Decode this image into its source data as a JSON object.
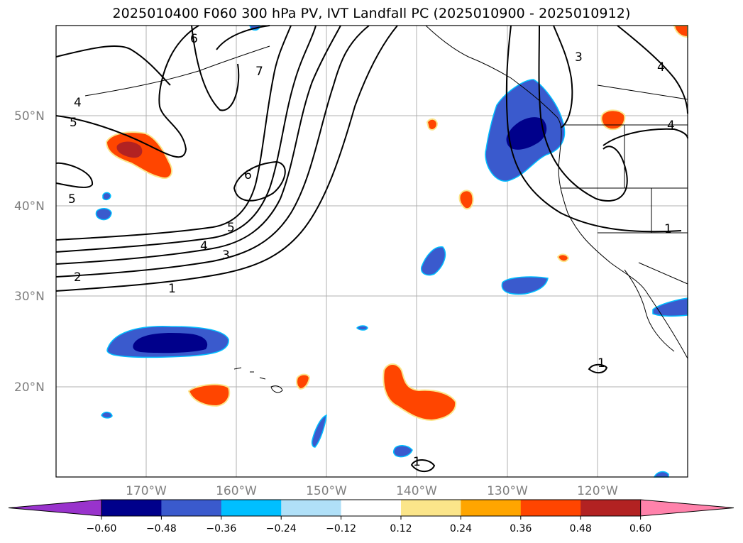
{
  "title": "2025010400 F060 300 hPa PV, IVT Landfall PC (2025010900 - 2025010912)",
  "map": {
    "lon_range": [
      -180,
      -110
    ],
    "lat_range": [
      10,
      60
    ],
    "lat_labels": [
      "50°N",
      "40°N",
      "30°N",
      "20°N"
    ],
    "lon_labels": [
      "170°W",
      "160°W",
      "150°W",
      "140°W",
      "130°W",
      "120°W"
    ],
    "contour_labels": [
      "6",
      "7",
      "4",
      "5",
      "6",
      "5",
      "4",
      "3",
      "2",
      "1",
      "3",
      "4",
      "4",
      "1",
      "1",
      "1",
      "5"
    ]
  },
  "colorbar": {
    "ticks": [
      "−0.60",
      "−0.48",
      "−0.36",
      "−0.24",
      "−0.12",
      "0.12",
      "0.24",
      "0.36",
      "0.48",
      "0.60"
    ],
    "colors": [
      "#9933cc",
      "#00008b",
      "#3a5acd",
      "#00bfff",
      "#b0e0f8",
      "#ffffff",
      "#fbe58a",
      "#ffa500",
      "#ff4500",
      "#b22222",
      "#ff82ab"
    ]
  }
}
